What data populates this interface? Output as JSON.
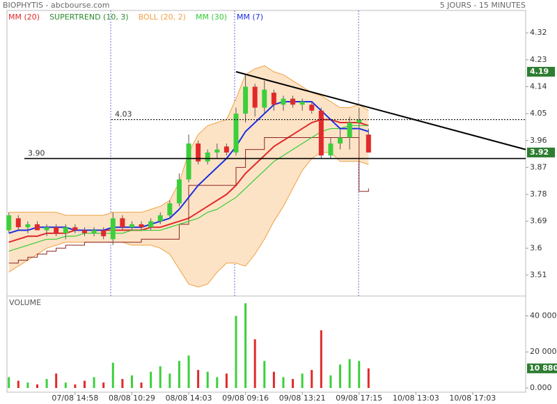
{
  "chart_data": [
    {
      "type": "candlestick",
      "title": "BIOPHYTIS - abcbourse.com",
      "subtitle": "5 JOURS - 15 MINUTES",
      "open": [
        3.66,
        3.7,
        3.67,
        3.68,
        3.66,
        3.67,
        3.65,
        3.67,
        3.66,
        3.65,
        3.66,
        3.63,
        3.7,
        3.67,
        3.68,
        3.67,
        3.69,
        3.71,
        3.75,
        3.83,
        3.95,
        3.89,
        3.92,
        3.94,
        3.92,
        4.05,
        4.14,
        4.07,
        4.12,
        4.08,
        4.1,
        4.08,
        4.08,
        4.06,
        3.91,
        3.95,
        3.97,
        4.02,
        3.98
      ],
      "high": [
        3.72,
        3.71,
        3.69,
        3.69,
        3.68,
        3.68,
        3.68,
        3.68,
        3.67,
        3.67,
        3.67,
        3.72,
        3.71,
        3.69,
        3.69,
        3.7,
        3.72,
        3.76,
        3.85,
        3.98,
        3.96,
        3.93,
        3.95,
        3.95,
        4.07,
        4.18,
        4.15,
        4.16,
        4.13,
        4.11,
        4.11,
        4.1,
        4.09,
        4.07,
        3.97,
        4.0,
        4.04,
        4.07,
        4.0
      ],
      "low": [
        3.65,
        3.66,
        3.65,
        3.66,
        3.64,
        3.64,
        3.63,
        3.65,
        3.64,
        3.64,
        3.63,
        3.61,
        3.66,
        3.66,
        3.66,
        3.66,
        3.68,
        3.7,
        3.74,
        3.82,
        3.88,
        3.88,
        3.9,
        3.91,
        3.91,
        4.02,
        4.04,
        4.05,
        4.06,
        4.06,
        4.07,
        4.06,
        4.05,
        3.9,
        3.9,
        3.93,
        3.93,
        3.97,
        3.92
      ],
      "close": [
        3.71,
        3.67,
        3.68,
        3.66,
        3.67,
        3.65,
        3.67,
        3.66,
        3.65,
        3.66,
        3.64,
        3.7,
        3.67,
        3.68,
        3.67,
        3.69,
        3.71,
        3.75,
        3.83,
        3.95,
        3.89,
        3.92,
        3.93,
        3.92,
        4.05,
        4.14,
        4.07,
        4.13,
        4.08,
        4.1,
        4.08,
        4.09,
        4.06,
        3.91,
        3.95,
        3.97,
        4.02,
        4.03,
        3.92
      ],
      "up_color": "#3ccf3c",
      "down_color": "#e02a2a",
      "indicators": [
        {
          "name": "MM (20)",
          "color": "#e02a2a",
          "values": [
            3.62,
            3.63,
            3.64,
            3.64,
            3.65,
            3.65,
            3.65,
            3.66,
            3.66,
            3.66,
            3.66,
            3.66,
            3.66,
            3.66,
            3.66,
            3.67,
            3.67,
            3.68,
            3.69,
            3.7,
            3.72,
            3.74,
            3.76,
            3.78,
            3.81,
            3.85,
            3.88,
            3.91,
            3.94,
            3.96,
            3.98,
            4.0,
            4.02,
            4.03,
            4.03,
            4.02,
            4.02,
            4.02,
            4.01
          ]
        },
        {
          "name": "SUPERTREND (10, 3)",
          "color": "#2a8a2a",
          "line_color": "#8b2222",
          "values": [
            3.55,
            3.56,
            3.57,
            3.58,
            3.59,
            3.6,
            3.61,
            3.61,
            3.62,
            3.62,
            3.62,
            3.62,
            3.62,
            3.62,
            3.63,
            3.63,
            3.63,
            3.63,
            3.68,
            3.81,
            3.81,
            3.81,
            3.81,
            3.81,
            3.87,
            3.93,
            3.93,
            3.97,
            3.97,
            3.97,
            3.97,
            3.97,
            3.97,
            3.97,
            3.97,
            3.97,
            3.97,
            3.79,
            3.8
          ]
        },
        {
          "name": "BOLL (20, 2)",
          "color": "#f0a040",
          "fill": "#fde3c6",
          "upper": [
            3.72,
            3.72,
            3.72,
            3.72,
            3.72,
            3.72,
            3.71,
            3.71,
            3.71,
            3.71,
            3.71,
            3.72,
            3.72,
            3.72,
            3.72,
            3.73,
            3.74,
            3.76,
            3.82,
            3.92,
            3.98,
            4.01,
            4.02,
            4.03,
            4.1,
            4.18,
            4.2,
            4.21,
            4.19,
            4.18,
            4.16,
            4.14,
            4.12,
            4.11,
            4.09,
            4.07,
            4.07,
            4.08,
            4.06
          ],
          "lower": [
            3.52,
            3.54,
            3.56,
            3.58,
            3.6,
            3.61,
            3.62,
            3.62,
            3.62,
            3.62,
            3.62,
            3.62,
            3.62,
            3.61,
            3.61,
            3.61,
            3.6,
            3.58,
            3.53,
            3.48,
            3.47,
            3.48,
            3.52,
            3.55,
            3.55,
            3.54,
            3.58,
            3.63,
            3.69,
            3.74,
            3.8,
            3.86,
            3.9,
            3.92,
            3.92,
            3.89,
            3.89,
            3.89,
            3.88
          ]
        },
        {
          "name": "MM (30)",
          "color": "#33cc33",
          "values": [
            3.59,
            3.6,
            3.61,
            3.62,
            3.63,
            3.63,
            3.64,
            3.64,
            3.65,
            3.65,
            3.65,
            3.65,
            3.65,
            3.66,
            3.66,
            3.66,
            3.66,
            3.67,
            3.68,
            3.69,
            3.7,
            3.72,
            3.73,
            3.75,
            3.77,
            3.8,
            3.83,
            3.86,
            3.89,
            3.91,
            3.93,
            3.95,
            3.97,
            3.99,
            4.0,
            4.0,
            4.01,
            4.01,
            4.01
          ]
        },
        {
          "name": "MM (7)",
          "color": "#1a2ee0",
          "values": [
            3.65,
            3.66,
            3.66,
            3.67,
            3.67,
            3.67,
            3.67,
            3.66,
            3.66,
            3.66,
            3.66,
            3.67,
            3.67,
            3.67,
            3.67,
            3.68,
            3.69,
            3.7,
            3.73,
            3.77,
            3.81,
            3.84,
            3.87,
            3.9,
            3.94,
            3.99,
            4.02,
            4.05,
            4.08,
            4.09,
            4.09,
            4.09,
            4.09,
            4.06,
            4.03,
            4.0,
            4.0,
            4.0,
            3.99
          ]
        }
      ],
      "levels": [
        {
          "value": 4.03,
          "label": "4.03",
          "style": "dotted"
        },
        {
          "value": 3.9,
          "label": "3.90",
          "style": "solid"
        }
      ],
      "trendline": {
        "x": [
          24,
          54.6
        ],
        "y": [
          4.19,
          3.93
        ]
      },
      "price_markers": [
        4.19,
        3.92
      ],
      "marker_color": "#2e7d32",
      "xlim": [
        -0.2,
        54.6
      ],
      "ylim": [
        3.44,
        4.395
      ],
      "yticks": [
        3.51,
        3.6,
        3.69,
        3.78,
        3.87,
        3.96,
        4.05,
        4.14,
        4.23,
        4.32
      ]
    },
    {
      "type": "bar",
      "title": "VOLUME",
      "values": [
        6000,
        4000,
        3000,
        2000,
        5000,
        8000,
        3000,
        2000,
        4000,
        6000,
        3000,
        14000,
        5000,
        7000,
        3000,
        9000,
        12000,
        8000,
        15000,
        18000,
        10000,
        9000,
        6000,
        8000,
        40000,
        47000,
        27000,
        15000,
        9000,
        6000,
        5000,
        8000,
        10000,
        32000,
        7000,
        13000,
        16000,
        15000,
        10880
      ],
      "last": {
        "value": 10880,
        "label": "10 880"
      },
      "marker_color": "#2e7d32",
      "xlim": [
        -0.2,
        54.6
      ],
      "ylim": [
        0,
        51000
      ],
      "yticks": [
        {
          "value": 0,
          "label": "0.000"
        },
        {
          "value": 20000,
          "label": "20 000"
        },
        {
          "value": 40000,
          "label": "40 000"
        }
      ],
      "xticks": [
        {
          "value": 7,
          "label": "07/08 14:58"
        },
        {
          "value": 13,
          "label": "08/08 10:29"
        },
        {
          "value": 19,
          "label": "08/08 14:03"
        },
        {
          "value": 25,
          "label": "09/08 09:16"
        },
        {
          "value": 31,
          "label": "09/08 13:21"
        },
        {
          "value": 37,
          "label": "09/08 17:15"
        },
        {
          "value": 43,
          "label": "10/08 13:03"
        },
        {
          "value": 49,
          "label": "10/08 17:03"
        }
      ]
    }
  ]
}
